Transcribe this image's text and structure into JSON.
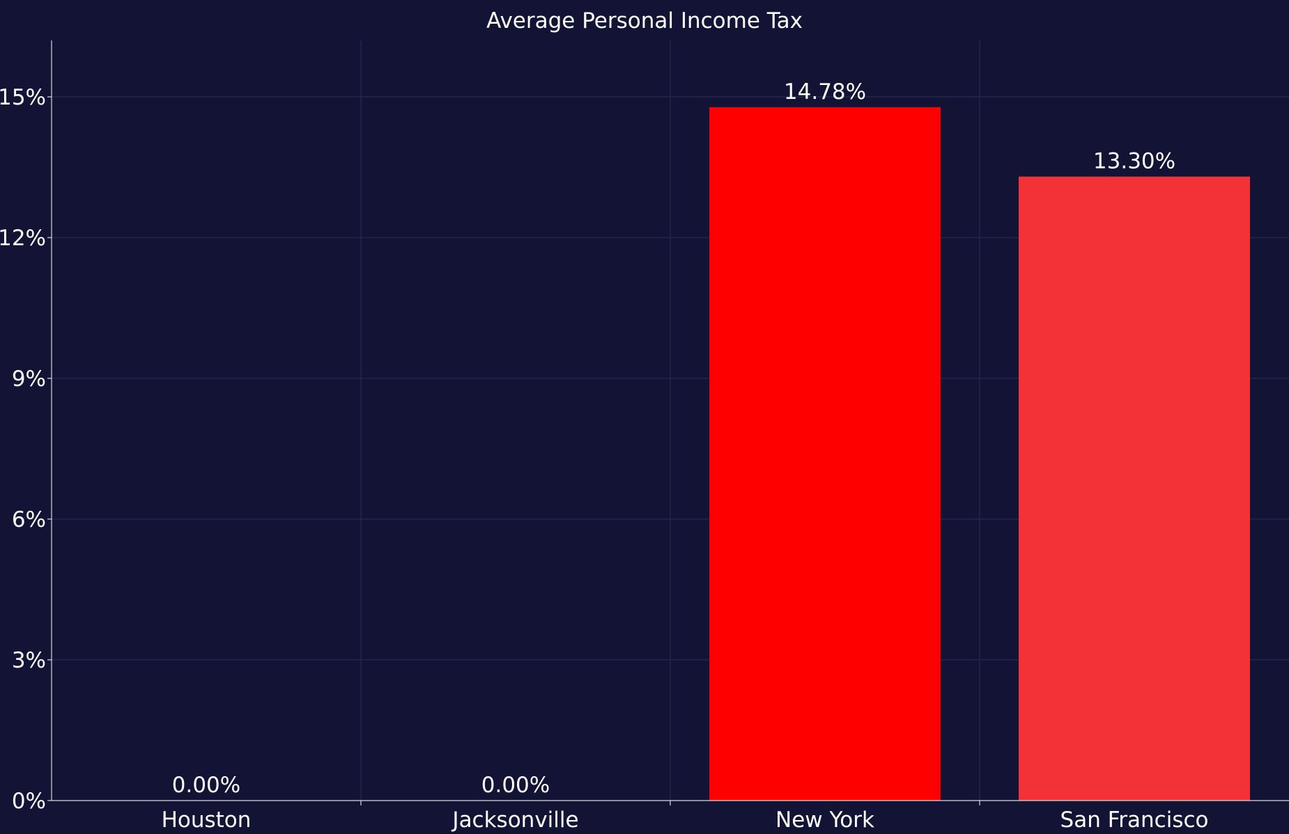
{
  "chart_data": {
    "type": "bar",
    "title": "Average Personal Income Tax",
    "categories": [
      "Houston",
      "Jacksonville",
      "New York",
      "San Francisco"
    ],
    "values": [
      0.0,
      0.0,
      14.78,
      13.3
    ],
    "data_labels": [
      "0.00%",
      "0.00%",
      "14.78%",
      "13.30%"
    ],
    "bar_colors": [
      "#ff0000",
      "#ff0000",
      "#ff0000",
      "#f23236"
    ],
    "yticks": [
      0,
      3,
      6,
      9,
      12,
      15
    ],
    "ytick_labels": [
      "0%",
      "3%",
      "6%",
      "9%",
      "12%",
      "15%"
    ],
    "ylim": [
      0,
      16.2
    ],
    "xlabel": "",
    "ylabel": "",
    "grid": true,
    "legend": "none"
  },
  "colors": {
    "background": "#131336",
    "gridline": "#2b2c55",
    "text": "#ffffff"
  }
}
